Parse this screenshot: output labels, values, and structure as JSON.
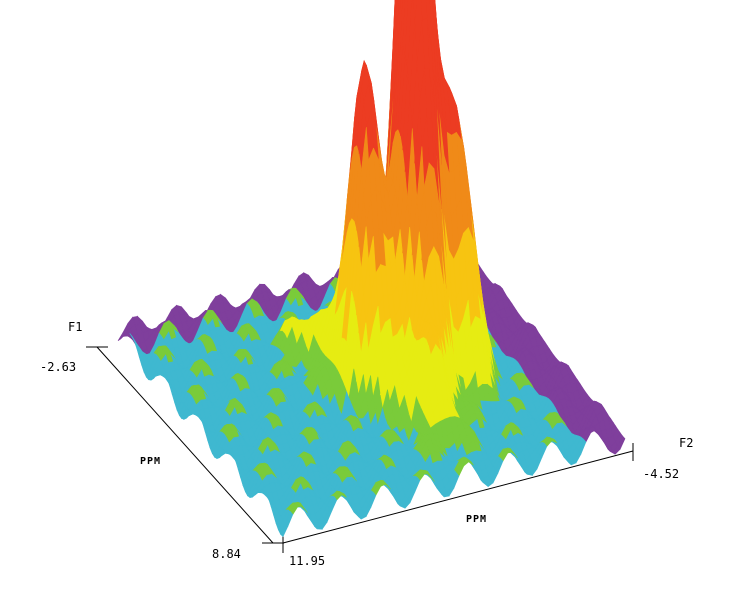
{
  "chart_data": {
    "type": "surface",
    "axes": {
      "f1": {
        "name": "F1",
        "unit": "PPM",
        "range": [
          -2.63,
          8.84
        ]
      },
      "f2": {
        "name": "F2",
        "unit": "PPM",
        "range": [
          11.95,
          -4.52
        ]
      }
    },
    "tick_labels": {
      "f1_start": "-2.63",
      "f1_end": "8.84",
      "f2_start": "11.95",
      "f2_end": "-4.52"
    },
    "peaks": [
      {
        "f1": 3.2,
        "f2": 1.8,
        "relative_height": 1.0
      },
      {
        "f1": 3.4,
        "f2": 4.2,
        "relative_height": 0.62
      },
      {
        "f1": 4.3,
        "f2": 2.3,
        "relative_height": 0.58
      },
      {
        "f1": 3.9,
        "f2": 0.2,
        "relative_height": 0.52
      },
      {
        "f1": 6.2,
        "f2": 3.0,
        "relative_height": 0.16
      },
      {
        "f1": 1.3,
        "f2": 5.5,
        "relative_height": 0.08
      }
    ],
    "colors": {
      "lowest": "#3fb8d0",
      "low": "#7acb3a",
      "mid": "#e6ec12",
      "mid_high": "#f7c411",
      "high": "#f08a18",
      "highest": "#ec3c22",
      "edge": "#7f3f9c"
    },
    "grid": false
  }
}
